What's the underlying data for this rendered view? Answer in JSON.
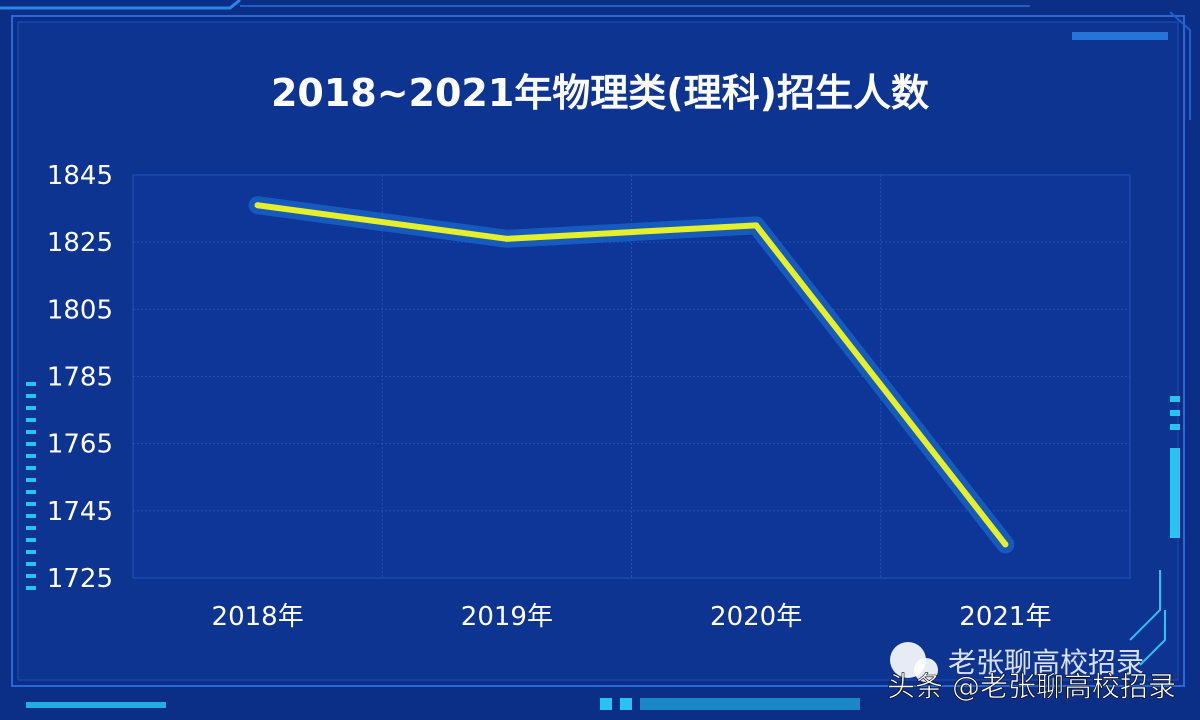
{
  "chart_data": {
    "type": "line",
    "title": "2018~2021年物理类(理科)招生人数",
    "categories": [
      "2018年",
      "2019年",
      "2020年",
      "2021年"
    ],
    "series": [
      {
        "values": [
          1836,
          1826,
          1830,
          1735
        ]
      }
    ],
    "yticks": [
      1725,
      1745,
      1765,
      1785,
      1805,
      1825,
      1845
    ],
    "ylim": [
      1725,
      1845
    ],
    "xlabel": "",
    "ylabel": "",
    "grid": true
  },
  "watermark": {
    "top": "老张聊高校招录",
    "bottom": "头条 @老张聊高校招录"
  },
  "colors": {
    "background": "#0b2e86",
    "line": "#e5ef2a",
    "line_glow": "#1a67c9",
    "accent": "#28c3f0",
    "text": "#ffffff"
  }
}
